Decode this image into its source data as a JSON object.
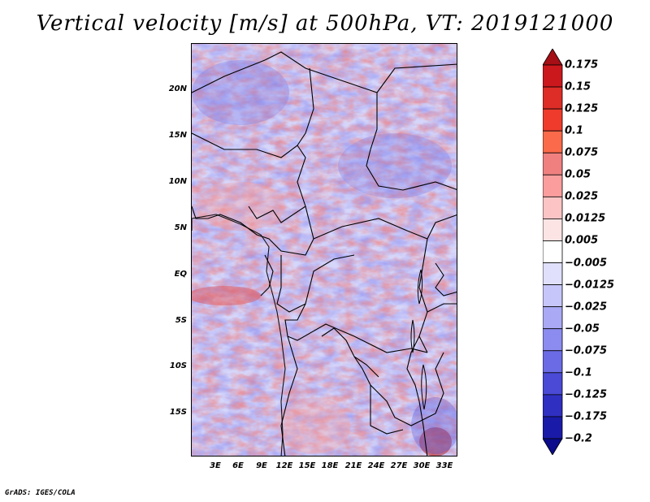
{
  "title": "Vertical velocity [m/s] at 500hPa, VT: 2019121000",
  "map": {
    "region": "Central Africa",
    "lat_labels": [
      "20N",
      "15N",
      "10N",
      "5N",
      "EQ",
      "5S",
      "10S",
      "15S"
    ],
    "lon_labels": [
      "3E",
      "6E",
      "9E",
      "12E",
      "15E",
      "18E",
      "21E",
      "24E",
      "27E",
      "30E",
      "33E"
    ],
    "field": "vertical velocity",
    "level": "500hPa",
    "valid_time": "2019121000"
  },
  "colorbar": {
    "labels": [
      "0.175",
      "0.15",
      "0.125",
      "0.1",
      "0.075",
      "0.05",
      "0.025",
      "0.0125",
      "0.005",
      "−0.005",
      "−0.0125",
      "−0.025",
      "−0.05",
      "−0.075",
      "−0.1",
      "−0.125",
      "−0.175",
      "−0.2"
    ],
    "colors": [
      "#a50f15",
      "#cb181d",
      "#de2d26",
      "#ef3b2c",
      "#fb6a4a",
      "#f08080",
      "#fc9d9d",
      "#fcc4c4",
      "#fde4e4",
      "#ffffff",
      "#e0e0fc",
      "#c6c6fb",
      "#a9a9f5",
      "#8c8cf0",
      "#6b6be5",
      "#4a4ad6",
      "#2f2fc2",
      "#1a1aa8",
      "#0b0b8c"
    ]
  },
  "credit": "GrADS: IGES/COLA"
}
